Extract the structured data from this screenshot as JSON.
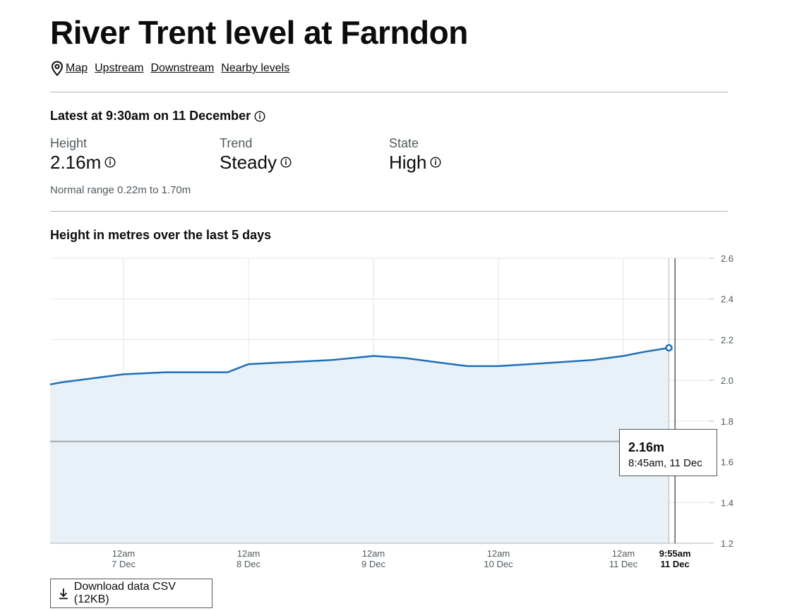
{
  "page": {
    "title": "River Trent level at Farndon",
    "links": [
      "Map",
      "Upstream",
      "Downstream",
      "Nearby levels"
    ]
  },
  "latest": {
    "title": "Latest at 9:30am on 11 December",
    "height_label": "Height",
    "height_value": "2.16m",
    "trend_label": "Trend",
    "trend_value": "Steady",
    "state_label": "State",
    "state_value": "High",
    "normal_range": "Normal range 0.22m to 1.70m"
  },
  "chart_data": {
    "type": "area",
    "title": "Height in metres over the last 5 days",
    "ylim": [
      1.2,
      2.6
    ],
    "yticks": [
      "2.6",
      "2.4",
      "2.2",
      "2.0",
      "1.8",
      "1.6",
      "1.4",
      "1.2"
    ],
    "xticks": [
      {
        "time": "12am",
        "date": "7 Dec"
      },
      {
        "time": "12am",
        "date": "8 Dec"
      },
      {
        "time": "12am",
        "date": "9 Dec"
      },
      {
        "time": "12am",
        "date": "10 Dec"
      },
      {
        "time": "12am",
        "date": "11 Dec"
      },
      {
        "time": "9:55am",
        "date": "11 Dec"
      }
    ],
    "grid": true,
    "threshold": 1.7,
    "series": [
      {
        "values": [
          {
            "x": "6 Dec 4:00am",
            "y": 1.98
          },
          {
            "x": "6 Dec 12:00pm",
            "y": 1.99
          },
          {
            "x": "6 Dec 6:00pm",
            "y": 2.01
          },
          {
            "x": "7 Dec 12am",
            "y": 2.03
          },
          {
            "x": "7 Dec 8:00am",
            "y": 2.04
          },
          {
            "x": "7 Dec 4:00pm",
            "y": 2.04
          },
          {
            "x": "7 Dec 8:00pm",
            "y": 2.04
          },
          {
            "x": "8 Dec 12am",
            "y": 2.08
          },
          {
            "x": "8 Dec 8:00am",
            "y": 2.09
          },
          {
            "x": "8 Dec 4:00pm",
            "y": 2.1
          },
          {
            "x": "9 Dec 12am",
            "y": 2.12
          },
          {
            "x": "9 Dec 6:00am",
            "y": 2.11
          },
          {
            "x": "9 Dec 12:00pm",
            "y": 2.09
          },
          {
            "x": "9 Dec 6:00pm",
            "y": 2.07
          },
          {
            "x": "10 Dec 12am",
            "y": 2.07
          },
          {
            "x": "10 Dec 6:00am",
            "y": 2.08
          },
          {
            "x": "10 Dec 12:00pm",
            "y": 2.09
          },
          {
            "x": "10 Dec 6:00pm",
            "y": 2.1
          },
          {
            "x": "11 Dec 12am",
            "y": 2.12
          },
          {
            "x": "11 Dec 4:00am",
            "y": 2.14
          },
          {
            "x": "11 Dec 8:45am",
            "y": 2.16
          }
        ]
      }
    ]
  },
  "tooltip": {
    "value": "2.16m",
    "time": "8:45am, 11 Dec"
  },
  "download": {
    "label": "Download data CSV (12KB)"
  },
  "colors": {
    "line": "#1d70b8",
    "area": "#e8f0f8",
    "threshold": "#b1b4b6",
    "grid": "#e6e6e6",
    "text": "#0b0c0c",
    "secondary": "#505a5f"
  }
}
